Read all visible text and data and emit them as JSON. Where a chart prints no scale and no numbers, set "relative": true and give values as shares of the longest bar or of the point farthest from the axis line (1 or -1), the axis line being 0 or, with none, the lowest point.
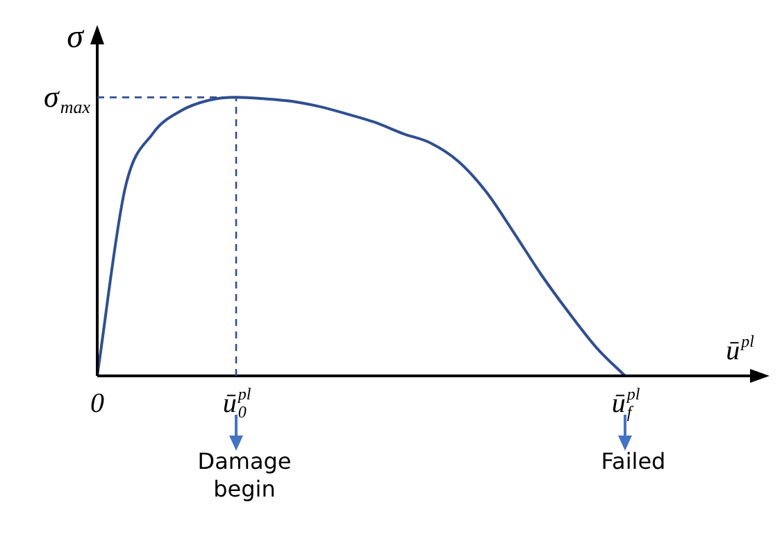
{
  "chart_data": {
    "type": "line",
    "relative": true,
    "ylabel": "σ",
    "xlabel": "ū$^{pl}$",
    "color": "#2f4f8f",
    "legend": false,
    "marker": "none",
    "categories": [
      "0",
      null,
      null,
      null,
      null,
      "ū$_{0}$$^{pl}$",
      null,
      null,
      null,
      null,
      null,
      null,
      null,
      null,
      null,
      null,
      null,
      null,
      null,
      "ū$_{f}$$^{pl}$",
      null,
      null,
      null,
      null
    ],
    "values": [
      0,
      0.672,
      0.87,
      0.951,
      0.989,
      1,
      0.995,
      0.986,
      0.967,
      0.94,
      0.91,
      0.87,
      0.836,
      0.77,
      0.661,
      0.514,
      0.361,
      0.224,
      0.098,
      0,
      null,
      null,
      null,
      null
    ],
    "ref_lines": [
      {
        "axis": "y",
        "value": 1,
        "label": "σ$_{max}$",
        "line_style": "dashed"
      },
      {
        "axis": "x",
        "value": "ū$_{0}$$^{pl}$",
        "line_style": "dashed"
      }
    ],
    "annotations": [
      "Damage begin",
      "Failed"
    ]
  }
}
